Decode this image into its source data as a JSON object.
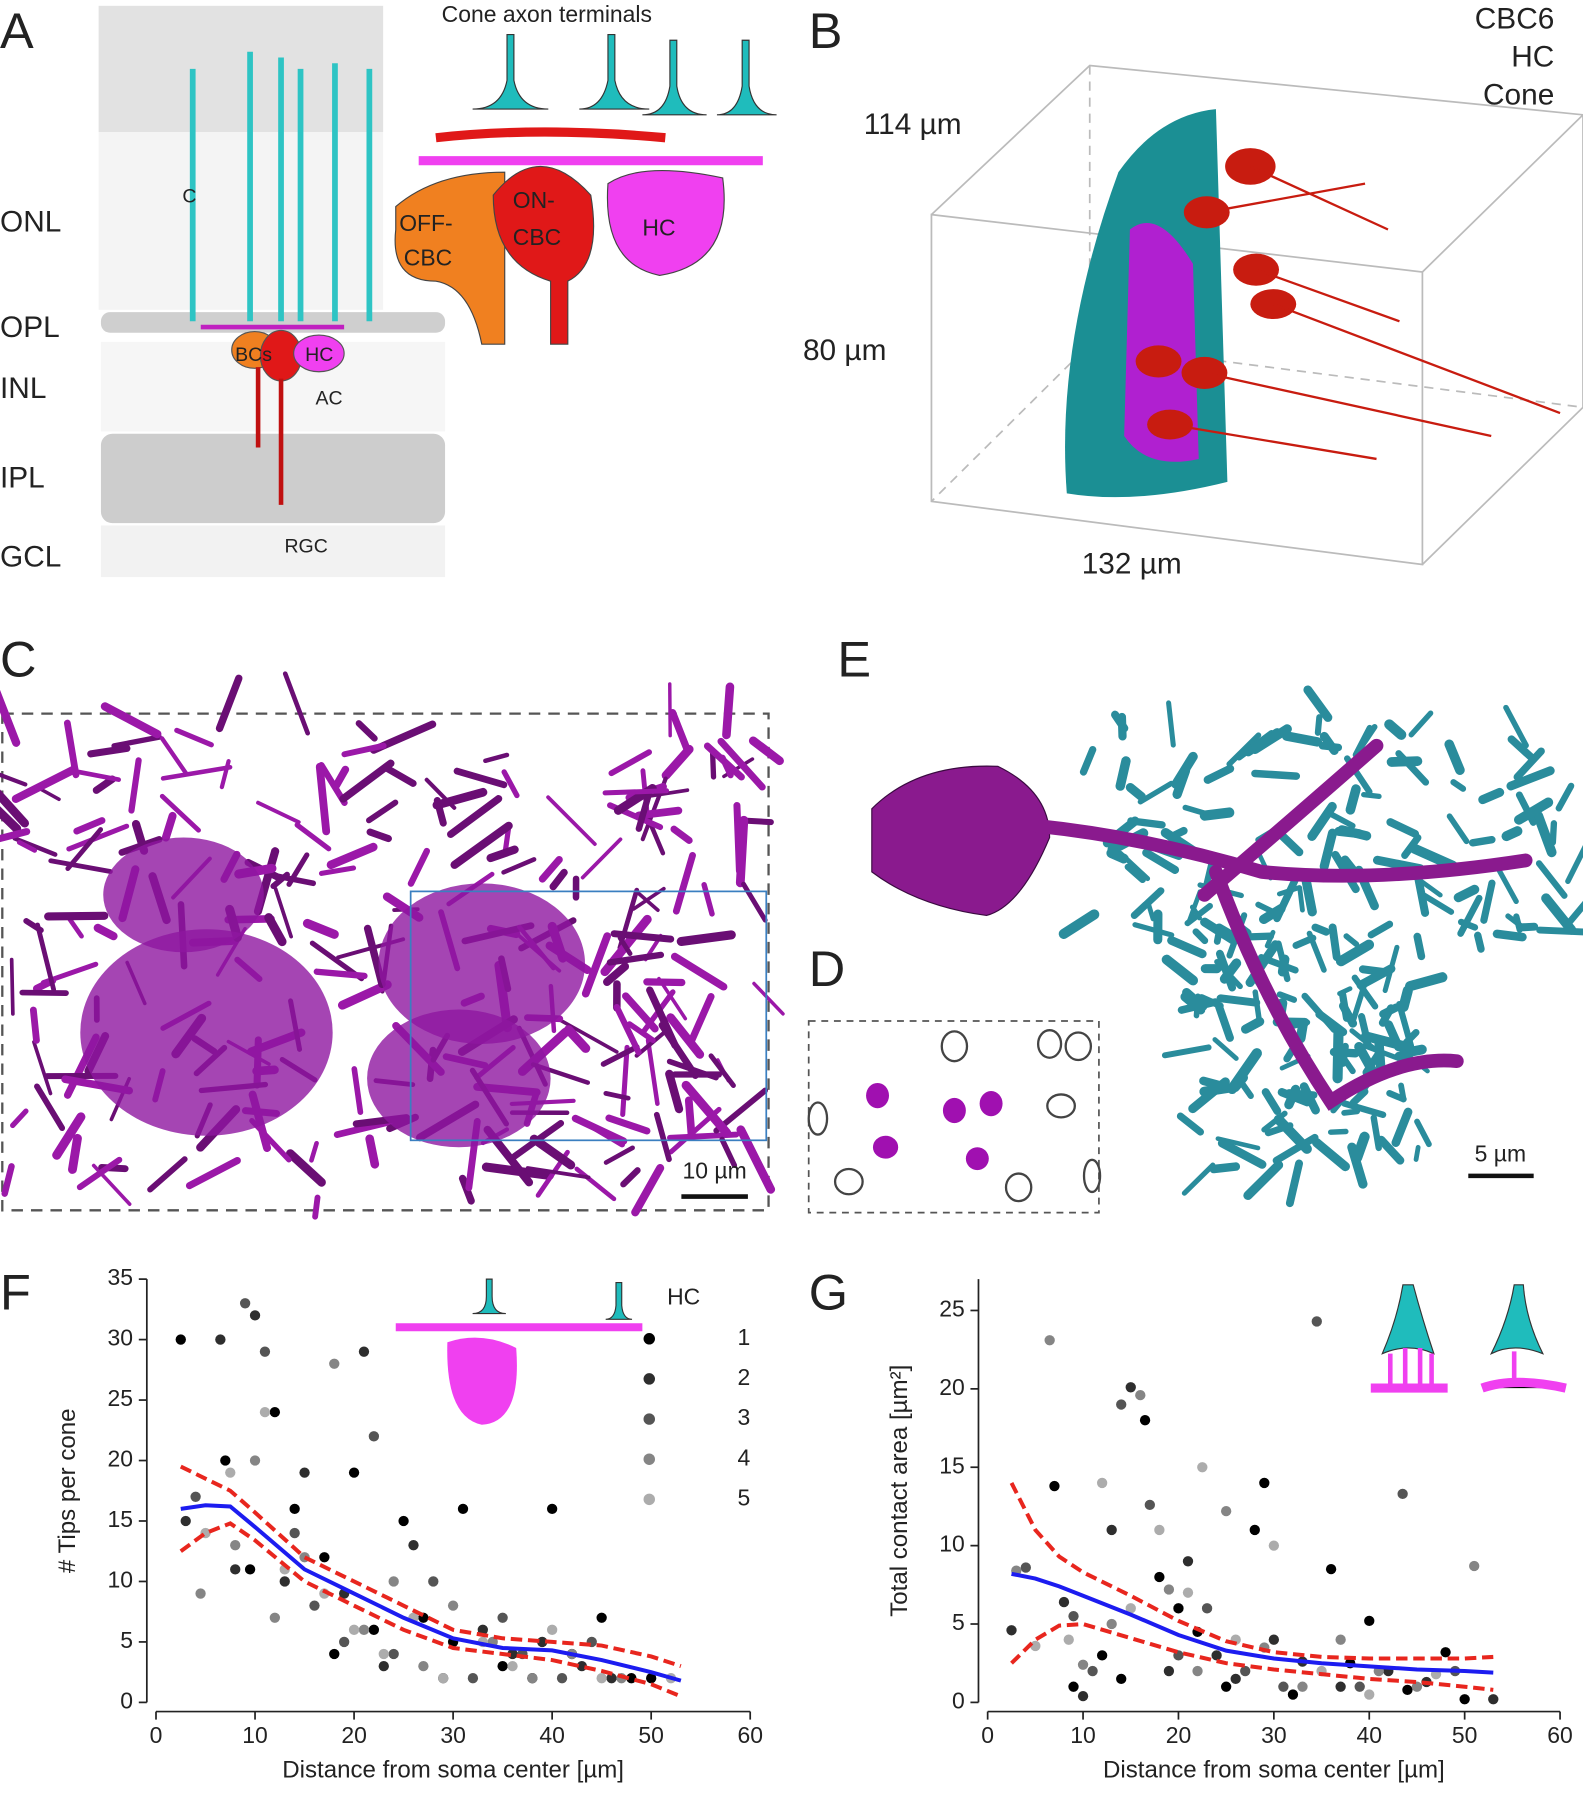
{
  "panel_labels": [
    "A",
    "B",
    "C",
    "D",
    "E",
    "F",
    "G"
  ],
  "panel_a": {
    "layers": [
      "ONL",
      "OPL",
      "INL",
      "IPL",
      "GCL"
    ],
    "cell_labels": [
      "C",
      "BCs",
      "HC",
      "AC",
      "RGC"
    ],
    "inset_title": "Cone axon terminals",
    "inset_labels": [
      "OFF-",
      "CBC",
      "ON-",
      "CBC",
      "HC"
    ]
  },
  "panel_b": {
    "legend": [
      {
        "label": "CBC6",
        "color": "#e02424"
      },
      {
        "label": "HC",
        "color": "#b010c8"
      },
      {
        "label": "Cone",
        "color": "#1fa3a8"
      }
    ],
    "dimensions": [
      "114 µm",
      "80 µm",
      "132 µm"
    ]
  },
  "panel_c": {
    "scale_bar": "10 µm"
  },
  "panel_e": {
    "scale_bar": "5 µm"
  },
  "chart_data": [
    {
      "type": "scatter",
      "xlabel": "Distance from soma center [µm]",
      "ylabel": "# Tips per cone",
      "xlim": [
        0,
        60
      ],
      "ylim": [
        0,
        35
      ],
      "xticks": [
        0,
        10,
        20,
        30,
        40,
        50,
        60
      ],
      "yticks": [
        0,
        5,
        10,
        15,
        20,
        25,
        30,
        35
      ],
      "legend_title": "HC",
      "legend": "upper right",
      "series": [
        {
          "name": "1",
          "color": "#000000",
          "x": [
            2.5,
            7,
            9.5,
            12,
            14,
            17,
            18,
            20,
            22,
            25,
            27,
            30,
            31,
            35,
            38,
            40,
            42,
            45,
            48,
            50
          ],
          "values": [
            30,
            20,
            11,
            24,
            16,
            12,
            4,
            19,
            6,
            15,
            7,
            5,
            16,
            3,
            2,
            16,
            4,
            7,
            2,
            2
          ]
        },
        {
          "name": "2",
          "color": "#2e2e2e",
          "x": [
            3,
            6.5,
            8,
            10,
            13,
            15,
            19,
            21,
            23,
            26,
            29,
            33,
            36,
            39,
            43,
            46
          ],
          "values": [
            15,
            30,
            11,
            32,
            10,
            19,
            9,
            29,
            3,
            13,
            2,
            6,
            4,
            5,
            3,
            2
          ]
        },
        {
          "name": "3",
          "color": "#555555",
          "x": [
            4,
            9,
            11,
            14,
            16,
            19,
            22,
            24,
            28,
            32,
            35,
            37,
            41,
            44
          ],
          "values": [
            17,
            33,
            29,
            14,
            8,
            5,
            22,
            4,
            10,
            2,
            7,
            4,
            2,
            5
          ]
        },
        {
          "name": "4",
          "color": "#858585",
          "x": [
            4.5,
            8,
            10,
            12,
            15,
            18,
            21,
            24,
            27,
            30,
            34,
            38,
            42,
            47
          ],
          "values": [
            9,
            13,
            20,
            7,
            12,
            28,
            6,
            10,
            3,
            8,
            5,
            2,
            4,
            2
          ]
        },
        {
          "name": "5",
          "color": "#acacac",
          "x": [
            5,
            7.5,
            11,
            13,
            17,
            20,
            23,
            26,
            29,
            33,
            36,
            40,
            45,
            52
          ],
          "values": [
            14,
            19,
            24,
            11,
            9,
            6,
            4,
            7,
            2,
            5,
            3,
            6,
            2,
            2
          ]
        }
      ],
      "lines": [
        {
          "color": "#1c1cf0",
          "dashed": false,
          "x": [
            2.5,
            5,
            7.5,
            10,
            15,
            20,
            25,
            30,
            35,
            40,
            45,
            50,
            53
          ],
          "values": [
            16,
            16.3,
            16.2,
            14.5,
            11,
            9,
            7,
            5.3,
            4.5,
            4.3,
            3.5,
            2.5,
            1.8
          ]
        },
        {
          "color": "#e8261e",
          "dashed": true,
          "x": [
            2.5,
            5,
            7.5,
            10,
            15,
            20,
            25,
            30,
            35,
            40,
            45,
            50,
            53
          ],
          "values": [
            19.5,
            18.5,
            17.5,
            15.7,
            12,
            10,
            8,
            6,
            5.3,
            5,
            4.7,
            3.8,
            3
          ]
        },
        {
          "color": "#e8261e",
          "dashed": true,
          "x": [
            2.5,
            5,
            7.5,
            10,
            15,
            20,
            25,
            30,
            35,
            40,
            45,
            50,
            53
          ],
          "values": [
            12.5,
            14,
            14.8,
            13.4,
            10,
            8,
            6,
            4.5,
            4,
            3.5,
            2.6,
            1.5,
            0.5
          ]
        }
      ]
    },
    {
      "type": "scatter",
      "xlabel": "Distance from soma center [µm]",
      "ylabel": "Total contact area [µm²]",
      "xlim": [
        0,
        60
      ],
      "ylim": [
        0,
        27
      ],
      "xticks": [
        0,
        10,
        20,
        30,
        40,
        50,
        60
      ],
      "yticks": [
        0,
        5,
        10,
        15,
        20,
        25
      ],
      "series": [
        {
          "color": "#000000",
          "x": [
            7,
            9,
            12,
            14,
            16.5,
            18,
            20,
            22,
            25,
            28,
            29,
            32,
            36,
            38,
            40,
            44,
            48,
            50
          ],
          "values": [
            13.8,
            1,
            3,
            1.5,
            18,
            8,
            6,
            4.5,
            1,
            11,
            14,
            0.5,
            8.5,
            2.5,
            5.2,
            0.8,
            3.2,
            0.2
          ]
        },
        {
          "color": "#2e2e2e",
          "x": [
            2.5,
            8,
            10,
            13,
            15,
            19,
            21,
            24,
            26,
            30,
            33,
            37,
            42,
            46,
            53
          ],
          "values": [
            4.6,
            6.4,
            0.4,
            11,
            20.1,
            2,
            9,
            3,
            1.5,
            4,
            2.6,
            1,
            2,
            1.3,
            0.2
          ]
        },
        {
          "color": "#555555",
          "x": [
            4,
            9,
            11,
            14,
            17,
            20,
            23,
            27,
            31,
            34.5,
            39,
            43.5,
            49
          ],
          "values": [
            8.6,
            5.5,
            2,
            19,
            12.6,
            3,
            6,
            2,
            1,
            24.3,
            1,
            13.3,
            2
          ]
        },
        {
          "color": "#858585",
          "x": [
            3,
            6.5,
            10,
            13,
            16,
            19,
            22,
            25,
            29,
            33,
            37,
            41,
            45,
            51
          ],
          "values": [
            8.4,
            23.1,
            2.4,
            5,
            19.6,
            7.2,
            2,
            12.2,
            3.5,
            1,
            4,
            2,
            1,
            8.7
          ]
        },
        {
          "color": "#acacac",
          "x": [
            5,
            8.5,
            12,
            15,
            18,
            21,
            22.5,
            26,
            30,
            35,
            40,
            47
          ],
          "values": [
            3.6,
            4,
            14,
            6,
            11,
            7,
            15,
            4,
            10,
            2,
            0.5,
            1.8
          ]
        }
      ],
      "lines": [
        {
          "color": "#1c1cf0",
          "dashed": false,
          "x": [
            2.5,
            5,
            7.5,
            10,
            15,
            20,
            25,
            30,
            35,
            40,
            45,
            50,
            53
          ],
          "values": [
            8.2,
            7.9,
            7.4,
            6.8,
            5.6,
            4.3,
            3.3,
            2.8,
            2.5,
            2.3,
            2.1,
            2,
            1.9
          ]
        },
        {
          "color": "#e8261e",
          "dashed": true,
          "x": [
            2.5,
            5,
            7.5,
            10,
            15,
            20,
            25,
            30,
            35,
            40,
            45,
            50,
            53
          ],
          "values": [
            14,
            11,
            9.3,
            8.3,
            6.8,
            5.2,
            3.9,
            3.2,
            2.9,
            2.8,
            2.8,
            2.8,
            2.9
          ]
        },
        {
          "color": "#e8261e",
          "dashed": true,
          "x": [
            2.5,
            5,
            7.5,
            10,
            15,
            20,
            25,
            30,
            35,
            40,
            45,
            50,
            53
          ],
          "values": [
            2.5,
            4,
            4.9,
            5,
            4.1,
            3.2,
            2.5,
            2.1,
            1.8,
            1.5,
            1.3,
            1,
            0.8
          ]
        }
      ]
    }
  ]
}
